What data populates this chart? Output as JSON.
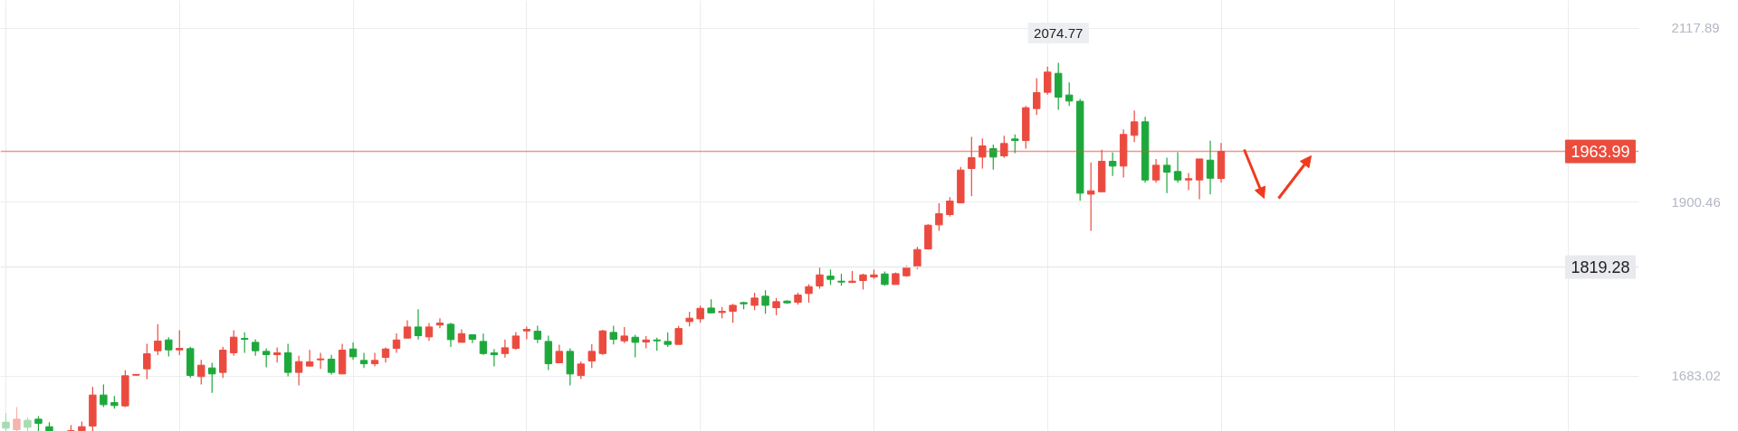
{
  "chart_data": {
    "type": "candlestick",
    "categories": [
      null,
      null,
      null,
      null,
      null,
      null,
      null,
      null,
      null,
      null,
      null,
      null,
      null,
      null,
      null,
      null,
      null,
      null,
      null,
      null,
      null,
      null,
      null,
      null,
      null,
      null,
      null,
      null,
      null,
      null,
      null,
      null,
      null,
      null,
      null,
      null,
      null,
      null,
      null,
      null,
      null,
      null,
      null,
      null,
      null,
      null,
      null,
      null,
      null,
      null,
      null,
      null,
      null,
      null,
      null,
      null,
      null,
      null,
      null,
      null,
      null,
      null,
      null,
      null,
      null,
      null,
      null,
      null,
      null,
      null,
      null,
      null,
      null,
      null,
      null,
      null,
      null,
      null,
      null,
      null,
      null,
      null,
      null,
      null,
      null,
      null,
      null,
      null,
      null,
      null,
      null,
      null,
      null,
      null,
      null,
      null,
      null,
      null,
      null,
      null,
      null,
      null,
      null,
      null,
      null,
      null,
      null,
      null,
      null,
      null,
      null,
      null,
      null,
      null,
      null,
      null,
      null,
      null,
      null,
      null,
      null,
      null,
      null,
      null,
      null,
      null,
      null,
      null,
      null,
      null,
      null,
      null,
      null,
      null,
      null,
      null,
      null,
      null,
      null,
      null,
      null,
      null,
      null,
      null,
      null,
      null,
      null,
      null,
      null,
      null,
      null
    ],
    "ohlc": [
      [
        1625.2,
        1636.6,
        1614,
        1617.7
      ],
      [
        1615.8,
        1644.1,
        1614,
        1629
      ],
      [
        1627.5,
        1630.9,
        1614,
        1618.8
      ],
      [
        1629,
        1632.8,
        1614,
        1623.7
      ],
      [
        1619.6,
        1625.2,
        1614,
        1614
      ],
      null,
      [
        1614,
        1621.5,
        1614,
        1614.5
      ],
      [
        1614.5,
        1626,
        1614,
        1619.6
      ],
      [
        1620.3,
        1669.3,
        1614,
        1659.2
      ],
      [
        1659.2,
        1672.4,
        1644.1,
        1647.1
      ],
      [
        1649.7,
        1658,
        1642.2,
        1646
      ],
      [
        1645.6,
        1690.1,
        1644.1,
        1683.3
      ],
      [
        1684,
        1685.5,
        1683.5,
        1685
      ],
      [
        1692,
        1723.3,
        1678.8,
        1710.8
      ],
      [
        1714.6,
        1747.8,
        1709,
        1726.7
      ],
      [
        1728.2,
        1731.6,
        1707.4,
        1715.7
      ],
      [
        1715.7,
        1740.2,
        1709,
        1717.6
      ],
      [
        1717.2,
        1719.5,
        1681,
        1683.7
      ],
      [
        1682.2,
        1703.3,
        1672.4,
        1696.5
      ],
      [
        1693.1,
        1699.5,
        1661.8,
        1685.6
      ],
      [
        1687.5,
        1719.5,
        1680.7,
        1715.3
      ],
      [
        1712,
        1740.2,
        1708.2,
        1731.6
      ],
      [
        1730,
        1737.6,
        1712,
        1728.9
      ],
      [
        1725.1,
        1728.9,
        1708.2,
        1714.6
      ],
      [
        1713.8,
        1717.6,
        1693.9,
        1709.7
      ],
      [
        1709.7,
        1718.7,
        1699.9,
        1712
      ],
      [
        1712,
        1723.3,
        1682.5,
        1687.5
      ],
      [
        1687.5,
        1708.2,
        1671.2,
        1701
      ],
      [
        1695.4,
        1715.7,
        1695.4,
        1700.6
      ],
      [
        1703.3,
        1712,
        1692,
        1704.4
      ],
      [
        1704,
        1709.3,
        1684.8,
        1687.5
      ],
      [
        1685.6,
        1723.3,
        1685.6,
        1715.3
      ],
      [
        1716.8,
        1725.1,
        1703.3,
        1707
      ],
      [
        1702.5,
        1711.9,
        1693,
        1698.3
      ],
      [
        1698.3,
        1711.9,
        1694.9,
        1702.5
      ],
      [
        1706.2,
        1718.7,
        1699.8,
        1716.8
      ],
      [
        1717.6,
        1736.4,
        1711.9,
        1728.1
      ],
      [
        1730.4,
        1752.6,
        1730.4,
        1744.3
      ],
      [
        1744.3,
        1766.6,
        1728.5,
        1733.4
      ],
      [
        1731.9,
        1749.2,
        1727,
        1744.3
      ],
      [
        1746.8,
        1755.3,
        1742.8,
        1749.2
      ],
      [
        1747.7,
        1749.6,
        1719.4,
        1728.5
      ],
      [
        1725.1,
        1741.3,
        1725.1,
        1736
      ],
      [
        1734.5,
        1734.5,
        1724,
        1728.9
      ],
      [
        1726.2,
        1736,
        1709.3,
        1711.1
      ],
      [
        1711.9,
        1716.8,
        1695,
        1709.6
      ],
      [
        1711.1,
        1728.5,
        1705.9,
        1718.3
      ],
      [
        1717.6,
        1737.9,
        1715.7,
        1733
      ],
      [
        1739.4,
        1744.7,
        1728.9,
        1741.3
      ],
      [
        1739,
        1745.8,
        1724,
        1728.9
      ],
      [
        1726.2,
        1733.4,
        1690.4,
        1698.3
      ],
      [
        1699.5,
        1722.1,
        1699.5,
        1713.8
      ],
      [
        1713.8,
        1717.6,
        1671.2,
        1685.5
      ],
      [
        1683.6,
        1701.3,
        1679.1,
        1698
      ],
      [
        1701.7,
        1722.8,
        1693,
        1713.8
      ],
      [
        1711.1,
        1740.9,
        1709.3,
        1739.4
      ],
      [
        1737.5,
        1745.8,
        1722.5,
        1728.9
      ],
      [
        1727,
        1744.3,
        1724,
        1733
      ],
      [
        1731.5,
        1734.5,
        1706.2,
        1725.1
      ],
      [
        1725.5,
        1733,
        1717.6,
        1728.1
      ],
      [
        1728.1,
        1730.8,
        1714.5,
        1727
      ],
      [
        1726.2,
        1737.5,
        1719.4,
        1722.5
      ],
      [
        1722.5,
        1745.5,
        1722.5,
        1742.4
      ],
      [
        1751.1,
        1763.5,
        1745.1,
        1755.3
      ],
      [
        1754.5,
        1771.1,
        1749.6,
        1767.7
      ],
      [
        1768,
        1779,
        1762,
        1762
      ],
      [
        1762.4,
        1769.2,
        1755.2,
        1763.9
      ],
      [
        1763.9,
        1773.3,
        1749.6,
        1771.4
      ],
      [
        1774.8,
        1776,
        1766.5,
        1773.3
      ],
      [
        1771.4,
        1787.3,
        1765.4,
        1780.5
      ],
      [
        1782.8,
        1790.3,
        1760.9,
        1771.4
      ],
      [
        1768.4,
        1780.5,
        1759,
        1776
      ],
      [
        1776.7,
        1777.9,
        1773.3,
        1774.5
      ],
      [
        1775.2,
        1787.3,
        1772.2,
        1784.3
      ],
      [
        1786.2,
        1797.8,
        1774.8,
        1794.8
      ],
      [
        1795.6,
        1819.3,
        1792.2,
        1809.5
      ],
      [
        1808,
        1816.3,
        1797.1,
        1803.9
      ],
      [
        1801.6,
        1811,
        1796,
        1800.5
      ],
      [
        1800.1,
        1814.4,
        1799.3,
        1801.6
      ],
      [
        1802.4,
        1811,
        1791.1,
        1809.5
      ],
      [
        1806.9,
        1816.3,
        1804.3,
        1809.5
      ],
      [
        1810.7,
        1813.7,
        1796,
        1797.5
      ],
      [
        1797.5,
        1812.5,
        1797.5,
        1811
      ],
      [
        1808.4,
        1821.2,
        1807.3,
        1819.3
      ],
      [
        1819.3,
        1844.6,
        1816.7,
        1841.2
      ],
      [
        1842,
        1872.9,
        1841.2,
        1871.7
      ],
      [
        1872.1,
        1899.2,
        1864.6,
        1886.1
      ],
      [
        1884.9,
        1906.8,
        1882.3,
        1901.9
      ],
      [
        1899.6,
        1944.5,
        1899.6,
        1940.7
      ],
      [
        1942.6,
        1982.2,
        1907.9,
        1956.2
      ],
      [
        1956.9,
        1980.3,
        1942.6,
        1970.9
      ],
      [
        1967.5,
        1972.7,
        1941.1,
        1956.9
      ],
      [
        1958.4,
        1983.7,
        1955.8,
        1973.9
      ],
      [
        1979.5,
        1985.2,
        1961.8,
        1977.6
      ],
      [
        1977.6,
        2021,
        1967.5,
        2018.7
      ],
      [
        2017.6,
        2055.7,
        2009.7,
        2037.6
      ],
      [
        2038,
        2070,
        2035,
        2063.2
      ],
      [
        2061.7,
        2074.77,
        2016.1,
        2031.9
      ],
      [
        2034.6,
        2050.4,
        2021,
        2027
      ],
      [
        2026.7,
        2029.7,
        1902.3,
        1911.7
      ],
      [
        1910.5,
        1950.1,
        1864.6,
        1914.7
      ],
      [
        1913.5,
        1966,
        1913.5,
        1951.6
      ],
      [
        1951.6,
        1962.6,
        1933.2,
        1945.6
      ],
      [
        1945.6,
        1991.6,
        1931.3,
        1985.2
      ],
      [
        1984.1,
        2015.3,
        1975.8,
        2001
      ],
      [
        2001,
        2007.4,
        1924.9,
        1928.3
      ],
      [
        1928.3,
        1954.6,
        1924.9,
        1946.7
      ],
      [
        1946.7,
        1956.2,
        1911.7,
        1938.1
      ],
      [
        1938.8,
        1962.9,
        1924.9,
        1928.3
      ],
      [
        1928.3,
        1936.9,
        1915.4,
        1929.8
      ],
      [
        1928.3,
        1954.6,
        1904.1,
        1954.6
      ],
      [
        1953.1,
        1977.3,
        1910.5,
        1930.5
      ],
      [
        1930.1,
        1974.6,
        1924.9,
        1963.99
      ],
      null,
      null,
      null,
      null,
      null,
      null,
      null,
      null,
      null,
      null,
      null,
      null,
      null,
      null,
      null,
      null,
      null,
      null,
      null,
      null,
      null,
      null,
      null,
      null,
      null,
      null,
      null,
      null,
      null,
      null,
      null,
      null,
      null,
      null,
      null,
      null,
      null,
      null
    ],
    "colors": [
      "#a5dcb0",
      "#f5b4ae",
      "#a5dcb0",
      "#1ea83c",
      "#1ea83c",
      null,
      "#eb4b3f",
      "#eb4b3f",
      "#eb4b3f",
      "#1ea83c",
      "#1ea83c",
      "#eb4b3f",
      "#eb4b3f",
      "#eb4b3f",
      "#eb4b3f",
      "#1ea83c",
      "#eb4b3f",
      "#1ea83c",
      "#eb4b3f",
      "#1ea83c",
      "#eb4b3f",
      "#eb4b3f",
      "#1ea83c",
      "#1ea83c",
      "#1ea83c",
      "#eb4b3f",
      "#1ea83c",
      "#eb4b3f",
      "#eb4b3f",
      "#eb4b3f",
      "#1ea83c",
      "#eb4b3f",
      "#1ea83c",
      "#1ea83c",
      "#eb4b3f",
      "#eb4b3f",
      "#eb4b3f",
      "#eb4b3f",
      "#1ea83c",
      "#eb4b3f",
      "#eb4b3f",
      "#1ea83c",
      "#eb4b3f",
      "#1ea83c",
      "#1ea83c",
      "#1ea83c",
      "#eb4b3f",
      "#eb4b3f",
      "#eb4b3f",
      "#1ea83c",
      "#1ea83c",
      "#eb4b3f",
      "#1ea83c",
      "#eb4b3f",
      "#eb4b3f",
      "#eb4b3f",
      "#1ea83c",
      "#eb4b3f",
      "#1ea83c",
      "#eb4b3f",
      "#1ea83c",
      "#1ea83c",
      "#eb4b3f",
      "#eb4b3f",
      "#eb4b3f",
      "#1ea83c",
      "#eb4b3f",
      "#eb4b3f",
      "#1ea83c",
      "#eb4b3f",
      "#1ea83c",
      "#eb4b3f",
      "#1ea83c",
      "#eb4b3f",
      "#eb4b3f",
      "#eb4b3f",
      "#1ea83c",
      "#1ea83c",
      "#eb4b3f",
      "#eb4b3f",
      "#eb4b3f",
      "#1ea83c",
      "#eb4b3f",
      "#eb4b3f",
      "#eb4b3f",
      "#eb4b3f",
      "#eb4b3f",
      "#eb4b3f",
      "#eb4b3f",
      "#eb4b3f",
      "#eb4b3f",
      "#1ea83c",
      "#eb4b3f",
      "#1ea83c",
      "#eb4b3f",
      "#eb4b3f",
      "#eb4b3f",
      "#1ea83c",
      "#1ea83c",
      "#1ea83c",
      "#eb4b3f",
      "#eb4b3f",
      "#1ea83c",
      "#eb4b3f",
      "#eb4b3f",
      "#1ea83c",
      "#eb4b3f",
      "#1ea83c",
      "#1ea83c",
      "#eb4b3f",
      "#eb4b3f",
      "#1ea83c",
      "#eb4b3f",
      null,
      null,
      null,
      null,
      null,
      null,
      null,
      null,
      null,
      null,
      null,
      null,
      null,
      null,
      null,
      null,
      null,
      null,
      null,
      null,
      null,
      null,
      null,
      null,
      null,
      null,
      null,
      null,
      null,
      null,
      null,
      null,
      null,
      null,
      null,
      null,
      null,
      null
    ],
    "ylim": [
      1613.6,
      2152.9
    ],
    "yticks": [
      1683.02,
      1900.46,
      2117.89
    ],
    "grid": true,
    "tick_labels": "y",
    "ref_lines": [
      {
        "axis": "y",
        "value": 1963.99,
        "label": "1963.99",
        "color": "#eb4d3d"
      },
      {
        "axis": "y",
        "value": 1819.28,
        "label": "1819.28",
        "color": "#e8eaee"
      }
    ],
    "annotations": [
      "2074.77"
    ]
  }
}
